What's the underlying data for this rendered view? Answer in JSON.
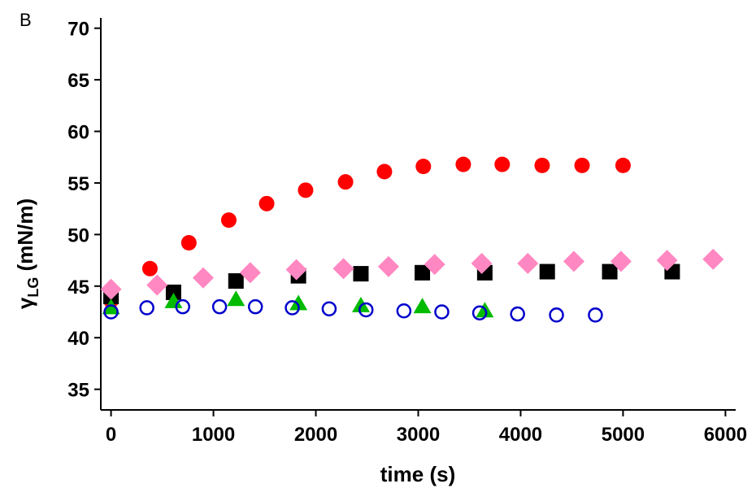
{
  "chart_data": {
    "type": "scatter",
    "panel_label": "B",
    "xlabel": "time (s)",
    "ylabel": {
      "symbol": "γ",
      "subscript": "LG",
      "rest": " (mN/m)"
    },
    "xlim": [
      -100,
      6100
    ],
    "ylim": [
      33,
      71
    ],
    "xticks": [
      0,
      1000,
      2000,
      3000,
      4000,
      5000,
      6000
    ],
    "yticks": [
      35,
      40,
      45,
      50,
      55,
      60,
      65,
      70
    ],
    "grid": false,
    "series": [
      {
        "marker": "circle-filled",
        "color": "#ff0000",
        "points": [
          [
            0,
            43.6
          ],
          [
            380,
            46.7
          ],
          [
            760,
            49.2
          ],
          [
            1150,
            51.4
          ],
          [
            1520,
            53.0
          ],
          [
            1900,
            54.3
          ],
          [
            2290,
            55.1
          ],
          [
            2670,
            56.1
          ],
          [
            3050,
            56.6
          ],
          [
            3440,
            56.8
          ],
          [
            3820,
            56.8
          ],
          [
            4210,
            56.7
          ],
          [
            4600,
            56.7
          ],
          [
            5000,
            56.7
          ]
        ]
      },
      {
        "marker": "square-filled",
        "color": "#000000",
        "points": [
          [
            0,
            44.0
          ],
          [
            610,
            44.4
          ],
          [
            1220,
            45.5
          ],
          [
            1830,
            46.0
          ],
          [
            2440,
            46.2
          ],
          [
            3040,
            46.3
          ],
          [
            3650,
            46.3
          ],
          [
            4260,
            46.4
          ],
          [
            4870,
            46.4
          ],
          [
            5480,
            46.4
          ]
        ]
      },
      {
        "marker": "diamond-filled",
        "color": "#ff88c2",
        "points": [
          [
            0,
            44.7
          ],
          [
            450,
            45.1
          ],
          [
            900,
            45.8
          ],
          [
            1360,
            46.3
          ],
          [
            1810,
            46.6
          ],
          [
            2270,
            46.7
          ],
          [
            2710,
            46.9
          ],
          [
            3160,
            47.1
          ],
          [
            3620,
            47.2
          ],
          [
            4070,
            47.2
          ],
          [
            4520,
            47.4
          ],
          [
            4980,
            47.4
          ],
          [
            5430,
            47.5
          ],
          [
            5880,
            47.6
          ]
        ]
      },
      {
        "marker": "triangle-filled",
        "color": "#00bb00",
        "points": [
          [
            0,
            42.9
          ],
          [
            610,
            43.5
          ],
          [
            1220,
            43.7
          ],
          [
            1830,
            43.3
          ],
          [
            2440,
            43.1
          ],
          [
            3040,
            43.0
          ],
          [
            3650,
            42.6
          ]
        ]
      },
      {
        "marker": "circle-open",
        "color": "#0000cc",
        "points": [
          [
            0,
            42.5
          ],
          [
            350,
            42.9
          ],
          [
            700,
            43.0
          ],
          [
            1060,
            43.0
          ],
          [
            1410,
            43.0
          ],
          [
            1770,
            42.9
          ],
          [
            2130,
            42.8
          ],
          [
            2490,
            42.7
          ],
          [
            2860,
            42.6
          ],
          [
            3230,
            42.5
          ],
          [
            3600,
            42.4
          ],
          [
            3970,
            42.3
          ],
          [
            4350,
            42.2
          ],
          [
            4730,
            42.2
          ]
        ]
      }
    ]
  }
}
